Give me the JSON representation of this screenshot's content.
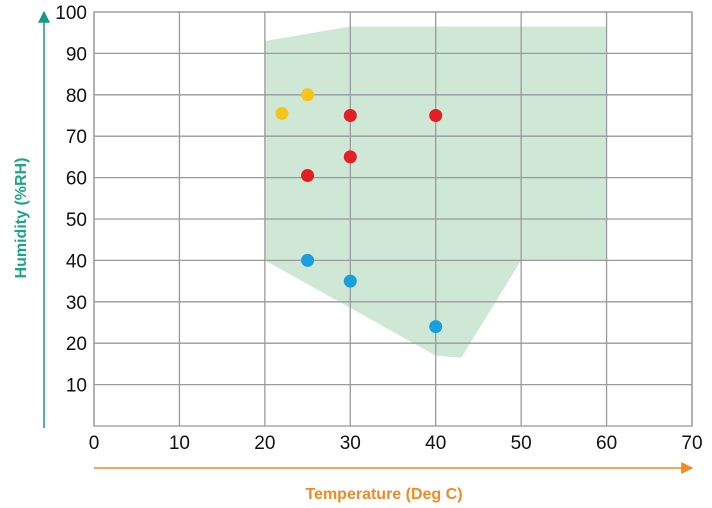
{
  "chart_data": {
    "type": "scatter",
    "title": "",
    "xlabel": "Temperature (Deg C)",
    "ylabel": "Humidity (%RH)",
    "xlim": [
      0,
      70
    ],
    "ylim": [
      0,
      100
    ],
    "xticks": [
      0,
      10,
      20,
      30,
      40,
      50,
      60,
      70
    ],
    "yticks": [
      10,
      20,
      30,
      40,
      50,
      60,
      70,
      80,
      90,
      100
    ],
    "grid": true,
    "legend": "none",
    "colors": {
      "region_fill": "#cfe8d6",
      "grid": "#9a9a9a",
      "x_axis_title": "#f08a24",
      "y_axis_title": "#1aa584",
      "x_arrow": "#f08a24",
      "y_arrow": "#139a80"
    },
    "region": {
      "points": [
        [
          20,
          93
        ],
        [
          30,
          96.5
        ],
        [
          60,
          96.5
        ],
        [
          60,
          40
        ],
        [
          50,
          40
        ],
        [
          43,
          16.5
        ],
        [
          40,
          17
        ],
        [
          20,
          40
        ]
      ]
    },
    "series": [
      {
        "color": "#f5c518",
        "points": [
          [
            22,
            75.5
          ],
          [
            25,
            80
          ]
        ]
      },
      {
        "color": "#e31e24",
        "points": [
          [
            30,
            75
          ],
          [
            40,
            75
          ],
          [
            30,
            65
          ],
          [
            25,
            60.5
          ]
        ]
      },
      {
        "color": "#1a9fde",
        "points": [
          [
            25,
            40
          ],
          [
            30,
            35
          ],
          [
            40,
            24
          ]
        ]
      }
    ]
  }
}
